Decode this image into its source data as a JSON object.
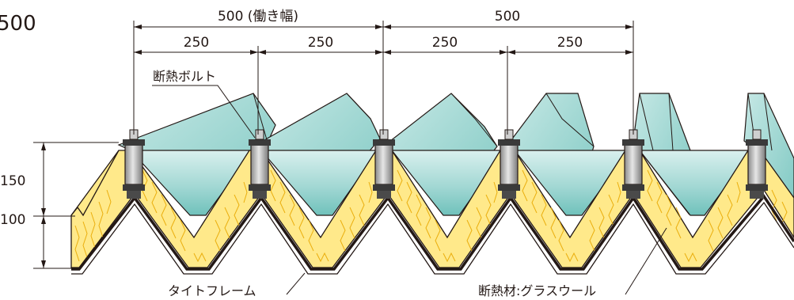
{
  "heading": "500",
  "dimensions": {
    "work_width": "500 (働き幅)",
    "span_right": "500",
    "half_1": "250",
    "half_2": "250",
    "half_3": "250",
    "half_4": "250",
    "height_upper": "150",
    "height_lower": "100"
  },
  "labels": {
    "bolt": "断熱ボルト",
    "frame": "タイトフレーム",
    "insulation": "断熱材:グラスウール"
  },
  "colors": {
    "roof_panel": "#9fd6d2",
    "roof_panel_dark": "#5fb5b0",
    "insulation": "#ffe98a",
    "insulation_fiber": "#e8a800",
    "bolt_body": "#b8b8b8",
    "line": "#231815"
  }
}
